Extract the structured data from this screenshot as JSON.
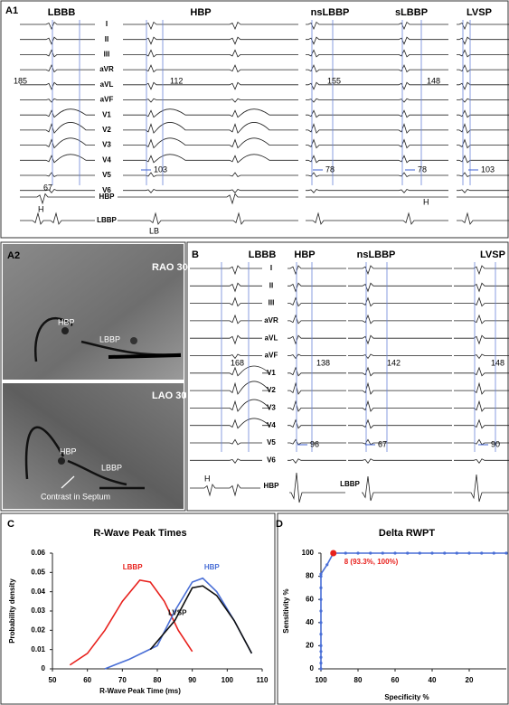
{
  "panel_a1": {
    "label": "A1",
    "columns": [
      "LBBB",
      "HBP",
      "nsLBBP",
      "sLBBP",
      "LVSP"
    ],
    "leads": [
      "I",
      "II",
      "III",
      "aVR",
      "aVL",
      "aVF",
      "V1",
      "V2",
      "V3",
      "V4",
      "V5",
      "V6"
    ],
    "intracardiac": [
      "HBP",
      "LBBP"
    ],
    "measurements": [
      185,
      112,
      155,
      148
    ],
    "rwpt": [
      103,
      78,
      78,
      103
    ],
    "annotations": [
      "67",
      "H",
      "H",
      "LB"
    ]
  },
  "panel_a2": {
    "label": "A2",
    "views": [
      "RAO 30",
      "LAO 30"
    ],
    "rao_labels": [
      "HBP",
      "LBBP"
    ],
    "lao_labels": [
      "HBP",
      "LBBP",
      "Contrast in Septum"
    ]
  },
  "panel_b": {
    "label": "B",
    "columns": [
      "LBBB",
      "HBP",
      "nsLBBP",
      "LVSP"
    ],
    "leads": [
      "I",
      "II",
      "III",
      "aVR",
      "aVL",
      "aVF",
      "V1",
      "V2",
      "V3",
      "V4",
      "V5",
      "V6"
    ],
    "intracardiac": [
      "HBP",
      "LBBP"
    ],
    "measurements": [
      168,
      138,
      142,
      148
    ],
    "rwpt": [
      96,
      67,
      90
    ],
    "annotations": [
      "H"
    ]
  },
  "chart_data": [
    {
      "type": "line",
      "panel": "C",
      "title": "R-Wave Peak Times",
      "x_label": "R-Wave Peak Time (ms)",
      "y_label": "Probability density",
      "xlim": [
        50,
        110
      ],
      "xticks": [
        50,
        60,
        70,
        80,
        90,
        100,
        110
      ],
      "ylim": [
        0,
        0.06
      ],
      "yticks": [
        0,
        0.01,
        0.02,
        0.03,
        0.04,
        0.05,
        0.06
      ],
      "grid": false,
      "series": [
        {
          "name": "LBBP",
          "color": "#e8211d",
          "x": [
            55,
            60,
            65,
            70,
            75,
            78,
            82,
            86,
            90
          ],
          "values": [
            0.002,
            0.008,
            0.02,
            0.035,
            0.046,
            0.045,
            0.035,
            0.02,
            0.009
          ]
        },
        {
          "name": "HBP",
          "color": "#4a6fd6",
          "x": [
            65,
            72,
            80,
            85,
            90,
            93,
            97,
            102,
            107
          ],
          "values": [
            0,
            0.005,
            0.012,
            0.03,
            0.045,
            0.047,
            0.04,
            0.025,
            0.008
          ]
        },
        {
          "name": "LVSP",
          "color": "#111111",
          "x": [
            78,
            85,
            90,
            93,
            97,
            102,
            107
          ],
          "values": [
            0.01,
            0.025,
            0.042,
            0.043,
            0.038,
            0.025,
            0.008
          ]
        }
      ]
    },
    {
      "type": "line",
      "panel": "D",
      "title": "Delta RWPT",
      "x_label": "Specificity %",
      "y_label": "Sensitivity %",
      "xlim": [
        100,
        0
      ],
      "xticks": [
        100,
        80,
        60,
        40,
        20
      ],
      "ylim": [
        0,
        100
      ],
      "yticks": [
        0,
        20,
        40,
        60,
        80,
        100
      ],
      "grid": false,
      "markers": true,
      "series": [
        {
          "color": "#4a6fd6",
          "x": [
            100,
            100,
            100,
            100,
            100,
            100,
            100,
            100,
            100,
            100,
            100,
            100,
            96.7,
            93.3,
            86.7,
            80,
            73.3,
            66.7,
            60,
            53.3,
            46.7,
            40,
            33.3,
            26.7,
            20,
            13.3,
            6.7,
            0
          ],
          "values": [
            0,
            5,
            10,
            15,
            20,
            30,
            40,
            50,
            60,
            70,
            80,
            82,
            90,
            100,
            100,
            100,
            100,
            100,
            100,
            100,
            100,
            100,
            100,
            100,
            100,
            100,
            100,
            100
          ]
        }
      ],
      "highlight": {
        "x": 93.3,
        "y": 100,
        "label": "8 (93.3%, 100%)",
        "color": "#e8211d"
      }
    }
  ]
}
